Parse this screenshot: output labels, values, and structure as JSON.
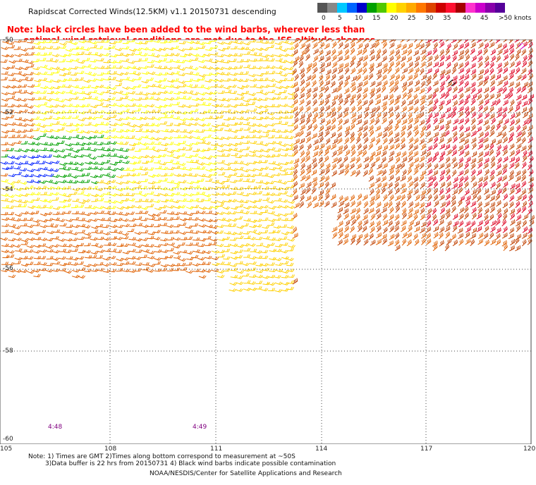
{
  "header": {
    "title": "Rapidscat Corrected Winds(12.5KM) v1.1 20150731 descending",
    "note_line1": "Note: black circles have been added to the wind barbs, wherever less than",
    "note_line2": ".. optimal wind retrieval conditions are met due to the ISS altitude changes."
  },
  "legend": {
    "labels": [
      "0",
      "5",
      "10",
      "15",
      "20",
      "25",
      "30",
      "35",
      "40",
      "45",
      ">50 knots"
    ],
    "colors": [
      "#555555",
      "#888888",
      "#00c8ff",
      "#0064ff",
      "#0000cc",
      "#00a000",
      "#50c800",
      "#ffff00",
      "#ffd200",
      "#ffaa00",
      "#ff7700",
      "#dd4400",
      "#cc0000",
      "#ff1030",
      "#a50000",
      "#ff33cc",
      "#cc00cc",
      "#8800aa",
      "#550099"
    ]
  },
  "map": {
    "lat_labels": [
      "-50",
      "-52",
      "-54",
      "-56",
      "-58",
      "-60"
    ],
    "lon_labels": [
      "105",
      "108",
      "111",
      "114",
      "117",
      "120"
    ],
    "time_labels": [
      "4:48",
      "4:49"
    ],
    "colors": {
      "light": "#ffff00",
      "moderate": "#ffd000",
      "green": "#00a000",
      "blue": "#0020ff",
      "orange": "#e06000",
      "dark_orange": "#c04000",
      "red": "#dd0020",
      "magenta": "#cc00cc",
      "black": "#000000",
      "grid": "#444444"
    }
  },
  "footer": {
    "line1": "Note: 1) Times are GMT 2)Times along bottom correspond to measurement at ~50S",
    "line2": "3)Data buffer is 22 hrs from 20150731 4) Black wind barbs indicate possible contamination",
    "credit": "NOAA/NESDIS/Center for Satellite Applications and Research"
  }
}
